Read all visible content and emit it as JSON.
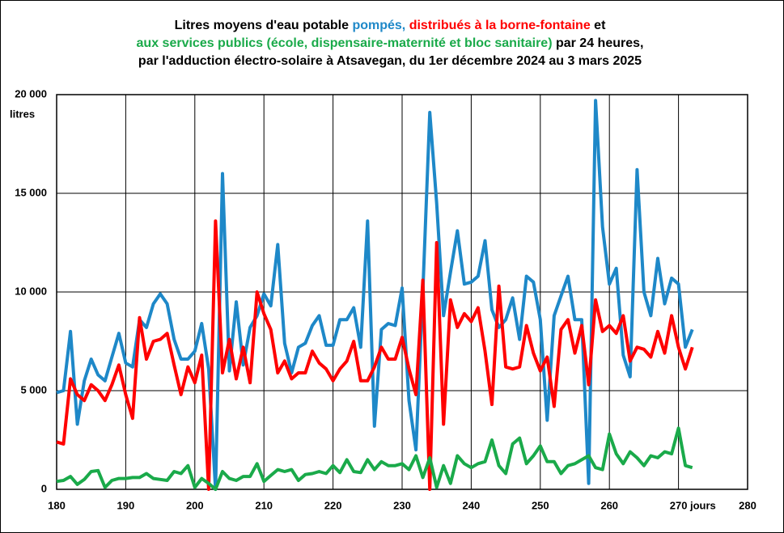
{
  "chart_data": {
    "type": "line",
    "title_lines": [
      [
        {
          "text": "Litres moyens d'eau potable ",
          "color": "#000000"
        },
        {
          "text": "pompés,",
          "color": "#1e88c8"
        },
        {
          "text": " distribués à la borne-fontaine",
          "color": "#ff0000"
        },
        {
          "text": " et",
          "color": "#000000"
        }
      ],
      [
        {
          "text": "aux services publics (école, dispensaire-maternité et bloc sanitaire)",
          "color": "#1aaa4a"
        },
        {
          "text": " par 24 heures,",
          "color": "#000000"
        }
      ],
      [
        {
          "text": "par l'adduction électro-solaire à Atsavegan, du 1er décembre 2024 au 3 mars 2025",
          "color": "#000000"
        }
      ]
    ],
    "y_label": "litres",
    "x_label": "jours",
    "xlim": [
      180,
      280
    ],
    "xticks": [
      180,
      190,
      200,
      210,
      220,
      230,
      240,
      250,
      260,
      270,
      280
    ],
    "ylim": [
      0,
      20000
    ],
    "yticks": [
      0,
      {
        "value": 5000,
        "label": "5 000"
      },
      {
        "value": 10000,
        "label": "10 000"
      },
      {
        "value": 15000,
        "label": "15 000"
      },
      {
        "value": 20000,
        "label": "20 000"
      }
    ],
    "grid": true,
    "x": [
      180,
      181,
      182,
      183,
      184,
      185,
      186,
      187,
      188,
      189,
      190,
      191,
      192,
      193,
      194,
      195,
      196,
      197,
      198,
      199,
      200,
      201,
      202,
      203,
      204,
      205,
      206,
      207,
      208,
      209,
      210,
      211,
      212,
      213,
      214,
      215,
      216,
      217,
      218,
      219,
      220,
      221,
      222,
      223,
      224,
      225,
      226,
      227,
      228,
      229,
      230,
      231,
      232,
      233,
      234,
      235,
      236,
      237,
      238,
      239,
      240,
      241,
      242,
      243,
      244,
      245,
      246,
      247,
      248,
      249,
      250,
      251,
      252,
      253,
      254,
      255,
      256,
      257,
      258,
      259,
      260,
      261,
      262,
      263,
      264,
      265,
      266,
      267,
      268,
      269,
      270,
      271,
      272
    ],
    "series": [
      {
        "color": "#1e88c8",
        "values": [
          4900,
          5000,
          8000,
          3300,
          5500,
          6600,
          5800,
          5500,
          6700,
          7900,
          6400,
          6200,
          8600,
          8200,
          9400,
          9900,
          9400,
          7600,
          6600,
          6600,
          7000,
          8400,
          6100,
          0,
          16000,
          6000,
          9500,
          6300,
          8200,
          8800,
          9900,
          9300,
          12400,
          7400,
          5900,
          7200,
          7400,
          8300,
          8800,
          7300,
          7300,
          8600,
          8600,
          9200,
          7200,
          13600,
          3200,
          8100,
          8400,
          8300,
          10200,
          4500,
          2000,
          10000,
          19100,
          14500,
          8800,
          11000,
          13100,
          10400,
          10500,
          10800,
          12600,
          9100,
          8200,
          8600,
          9700,
          7600,
          10800,
          10500,
          8600,
          3500,
          8800,
          9800,
          10800,
          8600,
          8600,
          300,
          19700,
          13300,
          10400,
          11200,
          6800,
          5700,
          16200,
          10000,
          8800,
          11700,
          9400,
          10700,
          10400,
          7200,
          8100
        ]
      },
      {
        "color": "#ff0000",
        "values": [
          2400,
          2300,
          5600,
          4800,
          4500,
          5300,
          5000,
          4500,
          5300,
          6300,
          4800,
          3600,
          8700,
          6600,
          7500,
          7600,
          7900,
          6300,
          4800,
          6200,
          5400,
          6800,
          0,
          13600,
          5900,
          7600,
          5600,
          7200,
          5400,
          10000,
          8900,
          8100,
          5900,
          6500,
          5600,
          5900,
          5900,
          7000,
          6400,
          6100,
          5500,
          6100,
          6500,
          7500,
          5500,
          5500,
          6200,
          7200,
          6600,
          6600,
          7700,
          6100,
          4800,
          10600,
          0,
          12500,
          3300,
          9600,
          8200,
          8900,
          8500,
          9200,
          7000,
          4300,
          10300,
          6200,
          6100,
          6200,
          8300,
          6900,
          6000,
          6700,
          4200,
          8100,
          8600,
          6900,
          8300,
          5300,
          9600,
          8000,
          8300,
          7900,
          8800,
          6500,
          7200,
          7100,
          6700,
          8000,
          6900,
          8800,
          7200,
          6100,
          7200
        ]
      },
      {
        "color": "#1aaa4a",
        "values": [
          400,
          450,
          650,
          250,
          500,
          900,
          950,
          100,
          450,
          550,
          550,
          600,
          600,
          800,
          550,
          500,
          450,
          900,
          800,
          1200,
          100,
          550,
          300,
          0,
          900,
          550,
          450,
          650,
          650,
          1300,
          400,
          700,
          1000,
          900,
          1000,
          450,
          750,
          800,
          900,
          800,
          1200,
          850,
          1500,
          900,
          850,
          1500,
          1000,
          1400,
          1200,
          1200,
          1300,
          1000,
          1700,
          600,
          1600,
          100,
          1200,
          300,
          1700,
          1300,
          1100,
          1300,
          1400,
          2500,
          1200,
          800,
          2300,
          2600,
          1300,
          1700,
          2200,
          1400,
          1400,
          800,
          1200,
          1300,
          1500,
          1700,
          1100,
          1000,
          2800,
          1800,
          1300,
          1900,
          1600,
          1200,
          1700,
          1600,
          1900,
          1800,
          3100,
          1200,
          1100
        ]
      }
    ]
  }
}
